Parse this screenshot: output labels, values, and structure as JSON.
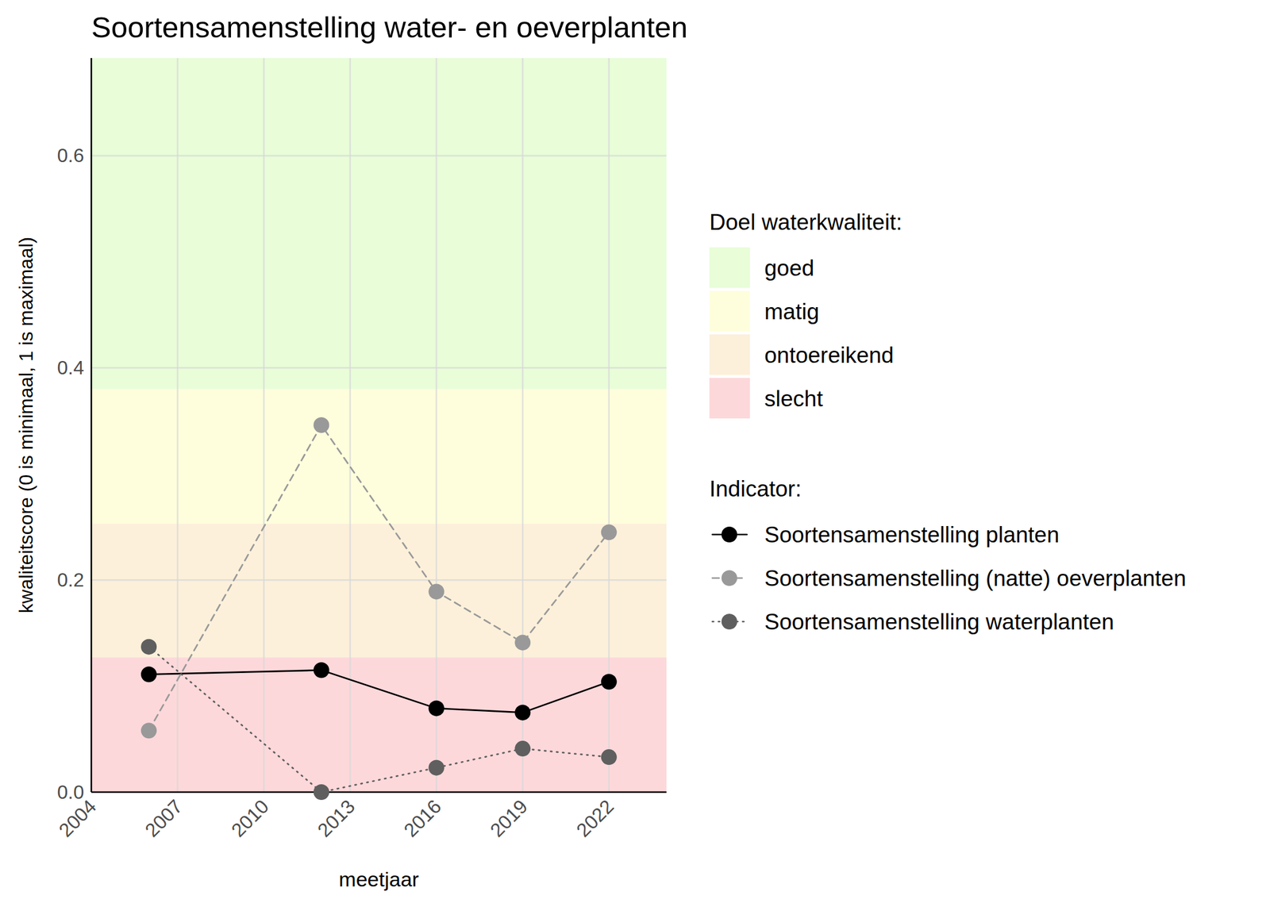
{
  "chart_data": {
    "type": "line",
    "title": "Soortensamenstelling water- en oeverplanten",
    "x_label": "meetjaar",
    "y_label": "kwaliteitscore (0 is minimaal, 1 is maximaal)",
    "xlim": [
      2004,
      2024
    ],
    "ylim": [
      0,
      0.692
    ],
    "xticks": [
      2004,
      2007,
      2010,
      2013,
      2016,
      2019,
      2022
    ],
    "yticks": [
      {
        "value": 0,
        "label": "0.0"
      },
      0.2,
      0.4,
      0.6
    ],
    "grid": true,
    "legend": "right",
    "x": [
      2006,
      2012,
      2016,
      2019,
      2022
    ],
    "band_legend_title": "Doel waterkwaliteit:",
    "bands": [
      {
        "name": "goed",
        "from": 0.38,
        "to": 1,
        "color": "#e8fdd8"
      },
      {
        "name": "matig",
        "from": 0.253,
        "to": 0.38,
        "color": "#fefedd"
      },
      {
        "name": "ontoereikend",
        "from": 0.127,
        "to": 0.253,
        "color": "#fcf0da"
      },
      {
        "name": "slecht",
        "from": 0,
        "to": 0.127,
        "color": "#fdd8da"
      }
    ],
    "legend_title": "Indicator:",
    "series": [
      {
        "name": "Soortensamenstelling planten",
        "color": "#000000",
        "marker": "circle",
        "line_style": "solid",
        "values": [
          0.111,
          0.115,
          0.079,
          0.075,
          0.104
        ]
      },
      {
        "name": "Soortensamenstelling (natte) oeverplanten",
        "color": "#999999",
        "marker": "circle",
        "line_style": "dashed",
        "values": [
          0.058,
          0.346,
          0.189,
          0.141,
          0.245
        ]
      },
      {
        "name": "Soortensamenstelling waterplanten",
        "color": "#5f5f5f",
        "marker": "circle",
        "line_style": "dotted",
        "values": [
          0.137,
          0,
          0.023,
          0.041,
          0.033
        ]
      }
    ]
  }
}
